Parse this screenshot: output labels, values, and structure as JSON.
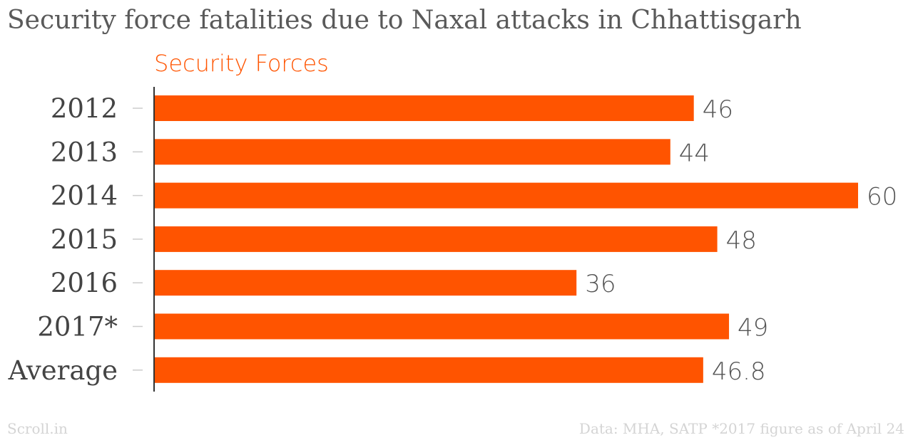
{
  "title": "Security force fatalities due to Naxal attacks in Chhattisgarh",
  "source_left": "Scroll.in",
  "source_right": "Data: MHA, SATP *2017 figure as of April 24",
  "colors": {
    "bar": "#ff5400",
    "value_text": "#555555",
    "category_text": "#444444",
    "axis": "#333333",
    "tick": "#cccccc"
  },
  "chart_data": {
    "type": "bar",
    "orientation": "horizontal",
    "categories": [
      "2012",
      "2013",
      "2014",
      "2015",
      "2016",
      "2017*",
      "Average"
    ],
    "series": [
      {
        "name": "Security Forces",
        "values": [
          46,
          44,
          60,
          48,
          36,
          49,
          46.8
        ]
      }
    ],
    "value_labels": [
      "46",
      "44",
      "60",
      "48",
      "36",
      "49",
      "46.8"
    ],
    "xlim": [
      0,
      60
    ],
    "grid": false
  }
}
